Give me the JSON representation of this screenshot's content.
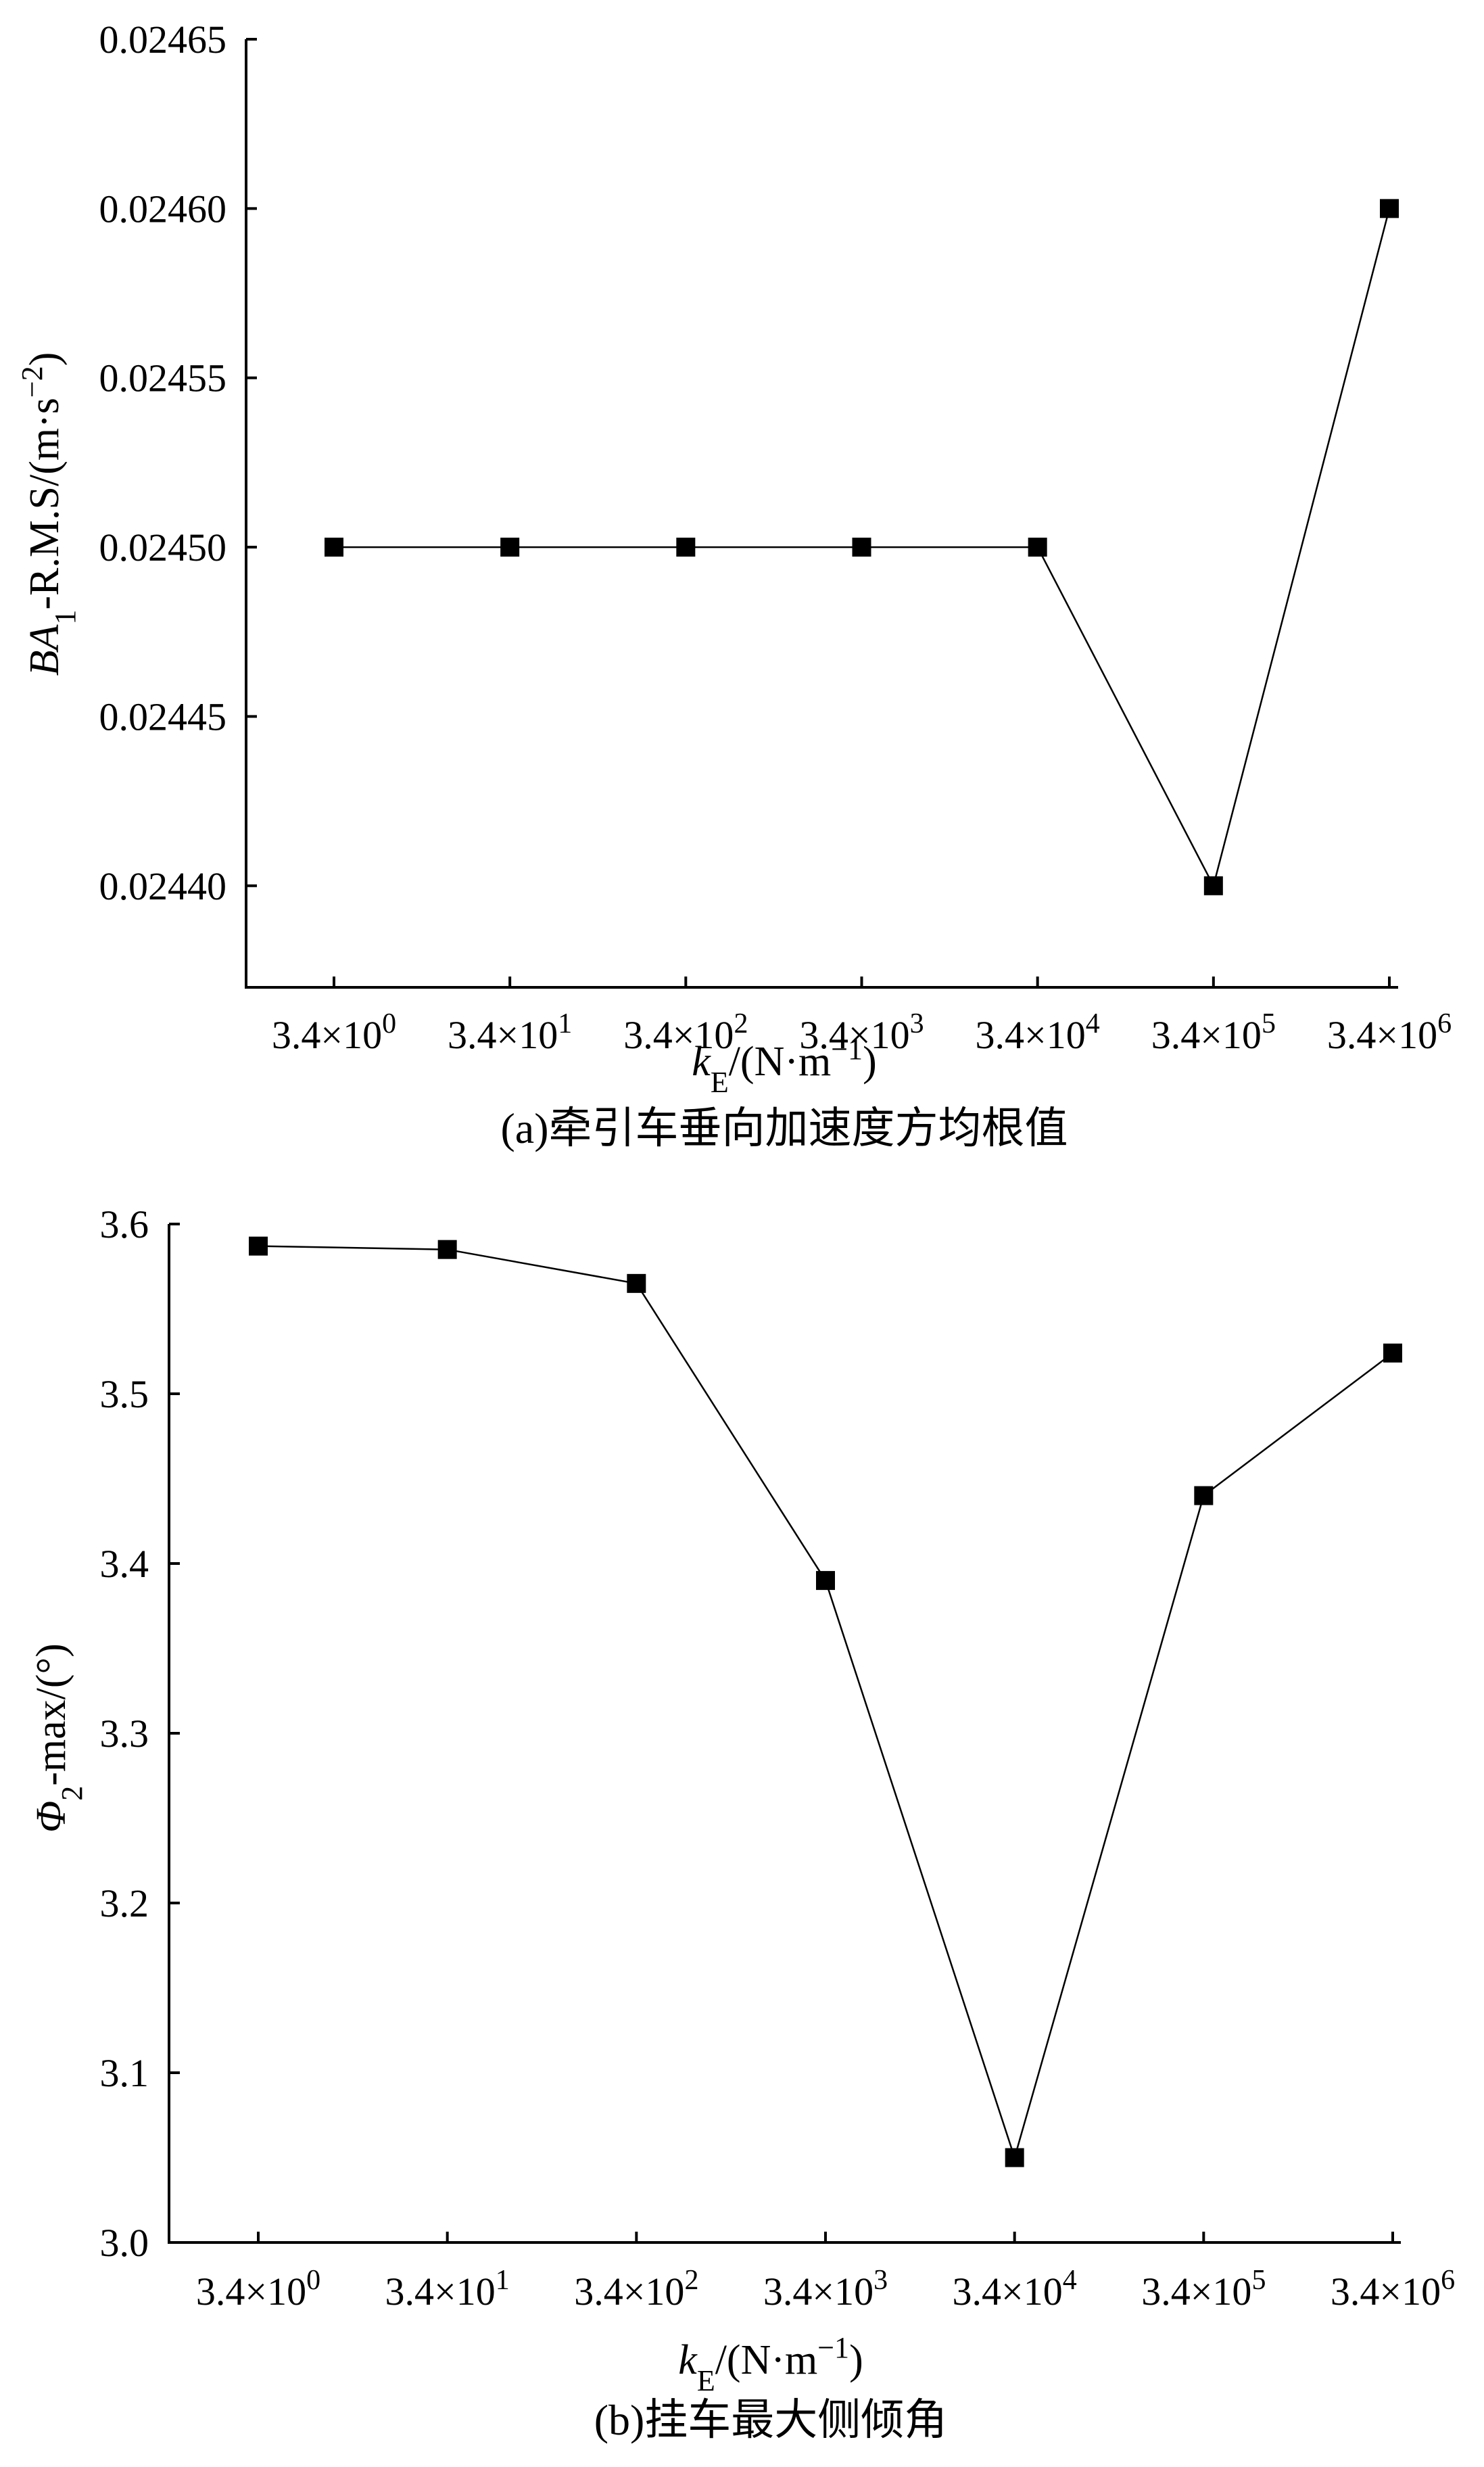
{
  "chart_data": [
    {
      "type": "line",
      "caption": "(a)牵引车垂向加速度方均根值",
      "x_ticks": [
        {
          "base": "3.4×10",
          "exp": "0"
        },
        {
          "base": "3.4×10",
          "exp": "1"
        },
        {
          "base": "3.4×10",
          "exp": "2"
        },
        {
          "base": "3.4×10",
          "exp": "3"
        },
        {
          "base": "3.4×10",
          "exp": "4"
        },
        {
          "base": "3.4×10",
          "exp": "5"
        },
        {
          "base": "3.4×10",
          "exp": "6"
        }
      ],
      "x_values": [
        3.4,
        34,
        340,
        3400,
        34000,
        340000,
        3400000
      ],
      "xscale": "log",
      "y_ticks": [
        "0.02440",
        "0.02445",
        "0.02450",
        "0.02455",
        "0.02460",
        "0.02465"
      ],
      "ylim": [
        0.02437,
        0.02465
      ],
      "series": [
        {
          "values": [
            0.0245,
            0.0245,
            0.0245,
            0.0245,
            0.0245,
            0.0244,
            0.0246
          ]
        }
      ],
      "xlabel": {
        "main": "k",
        "sub": "E",
        "unit": "/(N·m",
        "exp": "−1",
        "close": ")"
      },
      "ylabel": {
        "main": "BA",
        "sub": "1",
        "unit": "-R.M.S/(m·s",
        "exp": "−2",
        "close": ")"
      },
      "grid": false,
      "marker": "square"
    },
    {
      "type": "line",
      "caption": "(b)挂车最大侧倾角",
      "x_ticks": [
        {
          "base": "3.4×10",
          "exp": "0"
        },
        {
          "base": "3.4×10",
          "exp": "1"
        },
        {
          "base": "3.4×10",
          "exp": "2"
        },
        {
          "base": "3.4×10",
          "exp": "3"
        },
        {
          "base": "3.4×10",
          "exp": "4"
        },
        {
          "base": "3.4×10",
          "exp": "5"
        },
        {
          "base": "3.4×10",
          "exp": "6"
        }
      ],
      "x_values": [
        3.4,
        34,
        340,
        3400,
        34000,
        340000,
        3400000
      ],
      "xscale": "log",
      "y_ticks": [
        "3.0",
        "3.1",
        "3.2",
        "3.3",
        "3.4",
        "3.5",
        "3.6"
      ],
      "ylim": [
        3.0,
        3.6
      ],
      "series": [
        {
          "values": [
            3.587,
            3.585,
            3.565,
            3.39,
            3.05,
            3.44,
            3.524
          ]
        }
      ],
      "xlabel": {
        "main": "k",
        "sub": "E",
        "unit": "/(N·m",
        "exp": "−1",
        "close": ")"
      },
      "ylabel": {
        "main": "Φ",
        "sub": "2",
        "unit": "-max/(°)",
        "exp": "",
        "close": ""
      },
      "grid": false,
      "marker": "square"
    }
  ]
}
